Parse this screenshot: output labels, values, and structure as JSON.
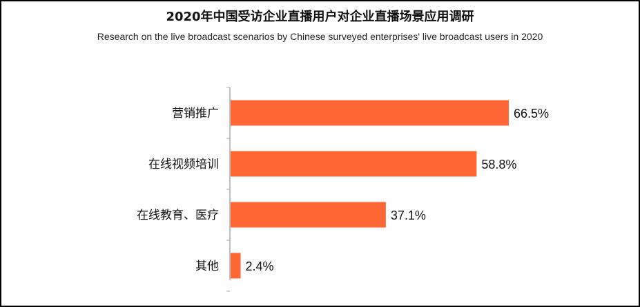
{
  "header": {
    "title": "2020年中国受访企业直播用户对企业直播场景应用调研",
    "subtitle": "Research on the live broadcast scenarios by Chinese surveyed enterprises' live broadcast users in 2020"
  },
  "colors": {
    "bar": "#FF6633",
    "axis": "#AAAAAA",
    "text": "#111111",
    "border": "#000000"
  },
  "chart_data": {
    "type": "bar",
    "orientation": "horizontal",
    "categories": [
      "营销推广",
      "在线视频培训",
      "在线教育、医疗",
      "其他"
    ],
    "values": [
      66.5,
      58.8,
      37.1,
      2.4
    ],
    "value_labels": [
      "66.5%",
      "58.8%",
      "37.1%",
      "2.4%"
    ],
    "unit": "%",
    "xlim": [
      0,
      100
    ],
    "grid": false,
    "legend": "none"
  }
}
